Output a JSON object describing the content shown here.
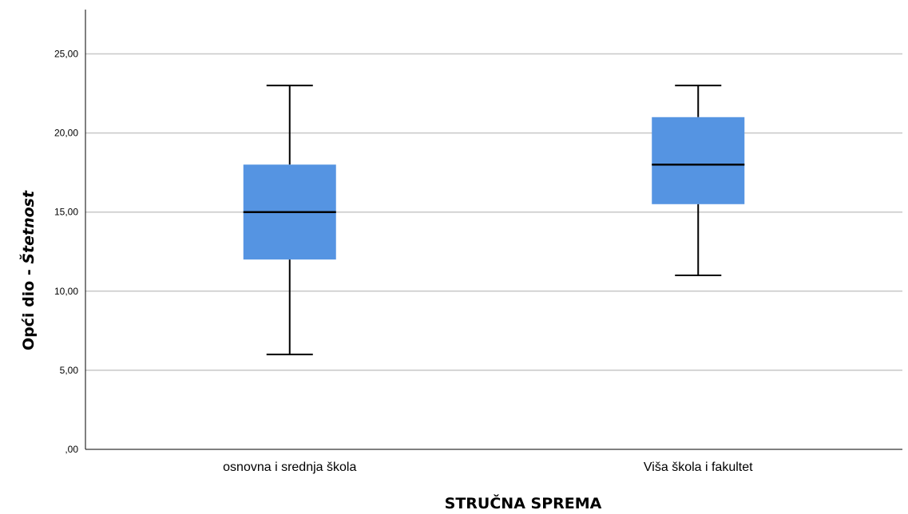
{
  "chart_data": {
    "type": "boxplot",
    "title": "",
    "xlabel": "STRUČNA SPREMA",
    "ylabel": {
      "prefix": "Opći dio - ",
      "emphasis": "Štetnost"
    },
    "ylim": [
      0,
      27.8
    ],
    "y_ticks": [
      {
        "value": 0,
        "label": ",00"
      },
      {
        "value": 5,
        "label": "5,00"
      },
      {
        "value": 10,
        "label": "10,00"
      },
      {
        "value": 15,
        "label": "15,00"
      },
      {
        "value": 20,
        "label": "20,00"
      },
      {
        "value": 25,
        "label": "25,00"
      }
    ],
    "grid": true,
    "box_color": "#5594e2",
    "categories": [
      "osnovna i srednja škola",
      "Viša škola i fakultet"
    ],
    "series": [
      {
        "category": "osnovna i srednja škola",
        "min": 6,
        "q1": 12,
        "median": 15,
        "q3": 18,
        "max": 23
      },
      {
        "category": "Viša škola i fakultet",
        "min": 11,
        "q1": 15.5,
        "median": 18,
        "q3": 21,
        "max": 23
      }
    ]
  }
}
